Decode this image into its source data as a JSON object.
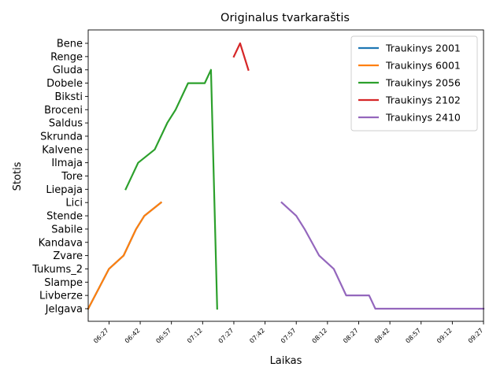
{
  "chart_data": {
    "type": "line",
    "title": "Originalus tvarkaraštis",
    "xlabel": "Laikas",
    "ylabel": "Stotis",
    "stations": [
      "Jelgava",
      "Livberze",
      "Slampe",
      "Tukums_2",
      "Zvare",
      "Kandava",
      "Sabile",
      "Stende",
      "Lici",
      "Liepaja",
      "Tore",
      "Ilmaja",
      "Kalvene",
      "Skrunda",
      "Saldus",
      "Broceni",
      "Biksti",
      "Dobele",
      "Gluda",
      "Renge",
      "Bene"
    ],
    "x_ticks": [
      "06:27",
      "06:42",
      "06:57",
      "07:12",
      "07:27",
      "07:42",
      "07:57",
      "08:12",
      "08:27",
      "08:42",
      "08:57",
      "09:12",
      "09:27"
    ],
    "xlim": [
      "06:17",
      "09:27"
    ],
    "legend_position": "upper right",
    "grid": false,
    "series": [
      {
        "name": "Traukinys 2001",
        "color": "#1f77b4",
        "points": [
          [
            "06:17",
            "Jelgava"
          ],
          [
            "06:27",
            "Tukums_2"
          ],
          [
            "06:34",
            "Zvare"
          ],
          [
            "06:40",
            "Sabile"
          ],
          [
            "06:44",
            "Stende"
          ],
          [
            "06:52",
            "Lici"
          ]
        ]
      },
      {
        "name": "Traukinys 6001",
        "color": "#ff7f0e",
        "points": [
          [
            "06:17",
            "Jelgava"
          ],
          [
            "06:27",
            "Tukums_2"
          ],
          [
            "06:34",
            "Zvare"
          ],
          [
            "06:40",
            "Sabile"
          ],
          [
            "06:44",
            "Stende"
          ],
          [
            "06:52",
            "Lici"
          ]
        ]
      },
      {
        "name": "Traukinys 2056",
        "color": "#2ca02c",
        "points": [
          [
            "06:35",
            "Liepaja"
          ],
          [
            "06:41",
            "Ilmaja"
          ],
          [
            "06:49",
            "Kalvene"
          ],
          [
            "06:55",
            "Saldus"
          ],
          [
            "06:59",
            "Broceni"
          ],
          [
            "07:05",
            "Dobele"
          ],
          [
            "07:13",
            "Dobele"
          ],
          [
            "07:16",
            "Gluda"
          ],
          [
            "07:19",
            "Jelgava"
          ]
        ]
      },
      {
        "name": "Traukinys 2102",
        "color": "#d62728",
        "points": [
          [
            "07:27",
            "Renge"
          ],
          [
            "07:30",
            "Bene"
          ],
          [
            "07:34",
            "Gluda"
          ]
        ]
      },
      {
        "name": "Traukinys 2410",
        "color": "#9467bd",
        "points": [
          [
            "07:50",
            "Lici"
          ],
          [
            "07:57",
            "Stende"
          ],
          [
            "08:01",
            "Sabile"
          ],
          [
            "08:08",
            "Zvare"
          ],
          [
            "08:15",
            "Tukums_2"
          ],
          [
            "08:21",
            "Livberze"
          ],
          [
            "08:32",
            "Livberze"
          ],
          [
            "08:35",
            "Jelgava"
          ],
          [
            "09:27",
            "Jelgava"
          ]
        ]
      }
    ]
  }
}
